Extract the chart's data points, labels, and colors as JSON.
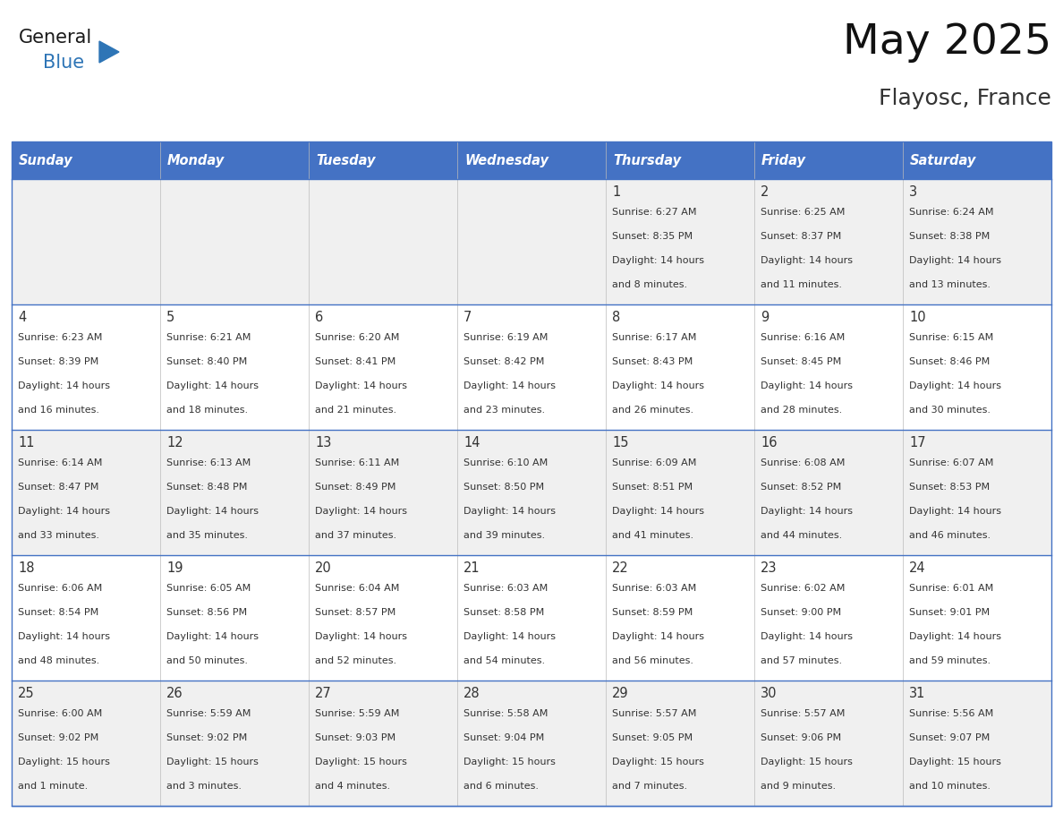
{
  "title": "May 2025",
  "subtitle": "Flayosc, France",
  "header_bg_color": "#4472C4",
  "header_text_color": "#FFFFFF",
  "day_names": [
    "Sunday",
    "Monday",
    "Tuesday",
    "Wednesday",
    "Thursday",
    "Friday",
    "Saturday"
  ],
  "row_colors": [
    "#F0F0F0",
    "#FFFFFF"
  ],
  "text_color": "#333333",
  "number_color": "#333333",
  "line_color": "#4472C4",
  "calendar": [
    [
      {
        "day": "",
        "sunrise": "",
        "sunset": "",
        "daylight_h": "",
        "daylight_m": ""
      },
      {
        "day": "",
        "sunrise": "",
        "sunset": "",
        "daylight_h": "",
        "daylight_m": ""
      },
      {
        "day": "",
        "sunrise": "",
        "sunset": "",
        "daylight_h": "",
        "daylight_m": ""
      },
      {
        "day": "",
        "sunrise": "",
        "sunset": "",
        "daylight_h": "",
        "daylight_m": ""
      },
      {
        "day": "1",
        "sunrise": "6:27 AM",
        "sunset": "8:35 PM",
        "daylight_h": "14 hours",
        "daylight_m": "and 8 minutes."
      },
      {
        "day": "2",
        "sunrise": "6:25 AM",
        "sunset": "8:37 PM",
        "daylight_h": "14 hours",
        "daylight_m": "and 11 minutes."
      },
      {
        "day": "3",
        "sunrise": "6:24 AM",
        "sunset": "8:38 PM",
        "daylight_h": "14 hours",
        "daylight_m": "and 13 minutes."
      }
    ],
    [
      {
        "day": "4",
        "sunrise": "6:23 AM",
        "sunset": "8:39 PM",
        "daylight_h": "14 hours",
        "daylight_m": "and 16 minutes."
      },
      {
        "day": "5",
        "sunrise": "6:21 AM",
        "sunset": "8:40 PM",
        "daylight_h": "14 hours",
        "daylight_m": "and 18 minutes."
      },
      {
        "day": "6",
        "sunrise": "6:20 AM",
        "sunset": "8:41 PM",
        "daylight_h": "14 hours",
        "daylight_m": "and 21 minutes."
      },
      {
        "day": "7",
        "sunrise": "6:19 AM",
        "sunset": "8:42 PM",
        "daylight_h": "14 hours",
        "daylight_m": "and 23 minutes."
      },
      {
        "day": "8",
        "sunrise": "6:17 AM",
        "sunset": "8:43 PM",
        "daylight_h": "14 hours",
        "daylight_m": "and 26 minutes."
      },
      {
        "day": "9",
        "sunrise": "6:16 AM",
        "sunset": "8:45 PM",
        "daylight_h": "14 hours",
        "daylight_m": "and 28 minutes."
      },
      {
        "day": "10",
        "sunrise": "6:15 AM",
        "sunset": "8:46 PM",
        "daylight_h": "14 hours",
        "daylight_m": "and 30 minutes."
      }
    ],
    [
      {
        "day": "11",
        "sunrise": "6:14 AM",
        "sunset": "8:47 PM",
        "daylight_h": "14 hours",
        "daylight_m": "and 33 minutes."
      },
      {
        "day": "12",
        "sunrise": "6:13 AM",
        "sunset": "8:48 PM",
        "daylight_h": "14 hours",
        "daylight_m": "and 35 minutes."
      },
      {
        "day": "13",
        "sunrise": "6:11 AM",
        "sunset": "8:49 PM",
        "daylight_h": "14 hours",
        "daylight_m": "and 37 minutes."
      },
      {
        "day": "14",
        "sunrise": "6:10 AM",
        "sunset": "8:50 PM",
        "daylight_h": "14 hours",
        "daylight_m": "and 39 minutes."
      },
      {
        "day": "15",
        "sunrise": "6:09 AM",
        "sunset": "8:51 PM",
        "daylight_h": "14 hours",
        "daylight_m": "and 41 minutes."
      },
      {
        "day": "16",
        "sunrise": "6:08 AM",
        "sunset": "8:52 PM",
        "daylight_h": "14 hours",
        "daylight_m": "and 44 minutes."
      },
      {
        "day": "17",
        "sunrise": "6:07 AM",
        "sunset": "8:53 PM",
        "daylight_h": "14 hours",
        "daylight_m": "and 46 minutes."
      }
    ],
    [
      {
        "day": "18",
        "sunrise": "6:06 AM",
        "sunset": "8:54 PM",
        "daylight_h": "14 hours",
        "daylight_m": "and 48 minutes."
      },
      {
        "day": "19",
        "sunrise": "6:05 AM",
        "sunset": "8:56 PM",
        "daylight_h": "14 hours",
        "daylight_m": "and 50 minutes."
      },
      {
        "day": "20",
        "sunrise": "6:04 AM",
        "sunset": "8:57 PM",
        "daylight_h": "14 hours",
        "daylight_m": "and 52 minutes."
      },
      {
        "day": "21",
        "sunrise": "6:03 AM",
        "sunset": "8:58 PM",
        "daylight_h": "14 hours",
        "daylight_m": "and 54 minutes."
      },
      {
        "day": "22",
        "sunrise": "6:03 AM",
        "sunset": "8:59 PM",
        "daylight_h": "14 hours",
        "daylight_m": "and 56 minutes."
      },
      {
        "day": "23",
        "sunrise": "6:02 AM",
        "sunset": "9:00 PM",
        "daylight_h": "14 hours",
        "daylight_m": "and 57 minutes."
      },
      {
        "day": "24",
        "sunrise": "6:01 AM",
        "sunset": "9:01 PM",
        "daylight_h": "14 hours",
        "daylight_m": "and 59 minutes."
      }
    ],
    [
      {
        "day": "25",
        "sunrise": "6:00 AM",
        "sunset": "9:02 PM",
        "daylight_h": "15 hours",
        "daylight_m": "and 1 minute."
      },
      {
        "day": "26",
        "sunrise": "5:59 AM",
        "sunset": "9:02 PM",
        "daylight_h": "15 hours",
        "daylight_m": "and 3 minutes."
      },
      {
        "day": "27",
        "sunrise": "5:59 AM",
        "sunset": "9:03 PM",
        "daylight_h": "15 hours",
        "daylight_m": "and 4 minutes."
      },
      {
        "day": "28",
        "sunrise": "5:58 AM",
        "sunset": "9:04 PM",
        "daylight_h": "15 hours",
        "daylight_m": "and 6 minutes."
      },
      {
        "day": "29",
        "sunrise": "5:57 AM",
        "sunset": "9:05 PM",
        "daylight_h": "15 hours",
        "daylight_m": "and 7 minutes."
      },
      {
        "day": "30",
        "sunrise": "5:57 AM",
        "sunset": "9:06 PM",
        "daylight_h": "15 hours",
        "daylight_m": "and 9 minutes."
      },
      {
        "day": "31",
        "sunrise": "5:56 AM",
        "sunset": "9:07 PM",
        "daylight_h": "15 hours",
        "daylight_m": "and 10 minutes."
      }
    ]
  ],
  "logo_general_color": "#1a1a1a",
  "logo_blue_color": "#2E75B6",
  "logo_triangle_color": "#2E75B6",
  "fig_width": 11.88,
  "fig_height": 9.18,
  "dpi": 100
}
